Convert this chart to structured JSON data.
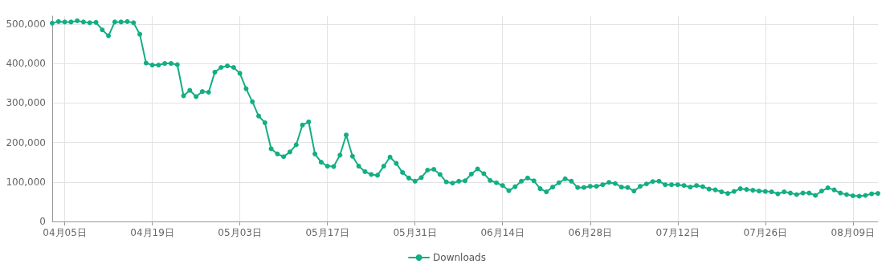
{
  "chart_data": {
    "type": "line",
    "categories": [
      null,
      null,
      "04月05日",
      null,
      null,
      null,
      null,
      null,
      null,
      null,
      null,
      null,
      null,
      null,
      null,
      null,
      "04月19日",
      null,
      null,
      null,
      null,
      null,
      null,
      null,
      null,
      null,
      null,
      null,
      null,
      null,
      "05月03日",
      null,
      null,
      null,
      null,
      null,
      null,
      null,
      null,
      null,
      null,
      null,
      null,
      null,
      "05月17日",
      null,
      null,
      null,
      null,
      null,
      null,
      null,
      null,
      null,
      null,
      null,
      null,
      null,
      "05月31日",
      null,
      null,
      null,
      null,
      null,
      null,
      null,
      null,
      null,
      null,
      null,
      null,
      null,
      "06月14日",
      null,
      null,
      null,
      null,
      null,
      null,
      null,
      null,
      null,
      null,
      null,
      null,
      null,
      "06月28日",
      null,
      null,
      null,
      null,
      null,
      null,
      null,
      null,
      null,
      null,
      null,
      null,
      null,
      "07月12日",
      null,
      null,
      null,
      null,
      null,
      null,
      null,
      null,
      null,
      null,
      null,
      null,
      null,
      "07月26日",
      null,
      null,
      null,
      null,
      null,
      null,
      null,
      null,
      null,
      null,
      null,
      null,
      null,
      "08月09日",
      null,
      null,
      null,
      null
    ],
    "series": [
      {
        "name": "Downloads",
        "color": "#13ae82",
        "values": [
          502000,
          506000,
          505000,
          505000,
          508000,
          505000,
          503000,
          504000,
          485000,
          470000,
          505000,
          505000,
          506000,
          503000,
          474000,
          401000,
          396000,
          396000,
          400000,
          400000,
          397000,
          318000,
          332000,
          316000,
          329000,
          327000,
          378000,
          390000,
          394000,
          390000,
          375000,
          336000,
          303000,
          267000,
          250000,
          184000,
          171000,
          164000,
          176000,
          194000,
          244000,
          252000,
          171000,
          150000,
          140000,
          139000,
          168000,
          219000,
          165000,
          140000,
          126000,
          119000,
          117000,
          140000,
          163000,
          147000,
          124000,
          110000,
          102000,
          111000,
          130000,
          132000,
          119000,
          100000,
          97000,
          102000,
          103000,
          120000,
          133000,
          121000,
          104000,
          98000,
          91000,
          78000,
          88000,
          102000,
          110000,
          103000,
          83000,
          75000,
          87000,
          98000,
          108000,
          102000,
          86000,
          86000,
          89000,
          89000,
          93000,
          99000,
          96000,
          87000,
          86000,
          77000,
          89000,
          95000,
          101000,
          102000,
          93000,
          93000,
          93000,
          91000,
          87000,
          91000,
          88000,
          82000,
          80000,
          75000,
          71000,
          76000,
          83000,
          81000,
          79000,
          77000,
          76000,
          75000,
          70000,
          75000,
          72000,
          68000,
          72000,
          72000,
          66000,
          77000,
          85000,
          80000,
          72000,
          68000,
          65000,
          64000,
          66000,
          70000,
          71000
        ]
      }
    ],
    "ylim": [
      0,
      520000
    ],
    "yticks": [
      0,
      {
        "value": 100000,
        "label": "100,000"
      },
      {
        "value": 200000,
        "label": "200,000"
      },
      {
        "value": 300000,
        "label": "300,000"
      },
      {
        "value": 400000,
        "label": "400,000"
      },
      {
        "value": 500000,
        "label": "500,000"
      }
    ],
    "grid": true,
    "legend": "bottom",
    "marker": "circle",
    "line_style": "solid"
  }
}
